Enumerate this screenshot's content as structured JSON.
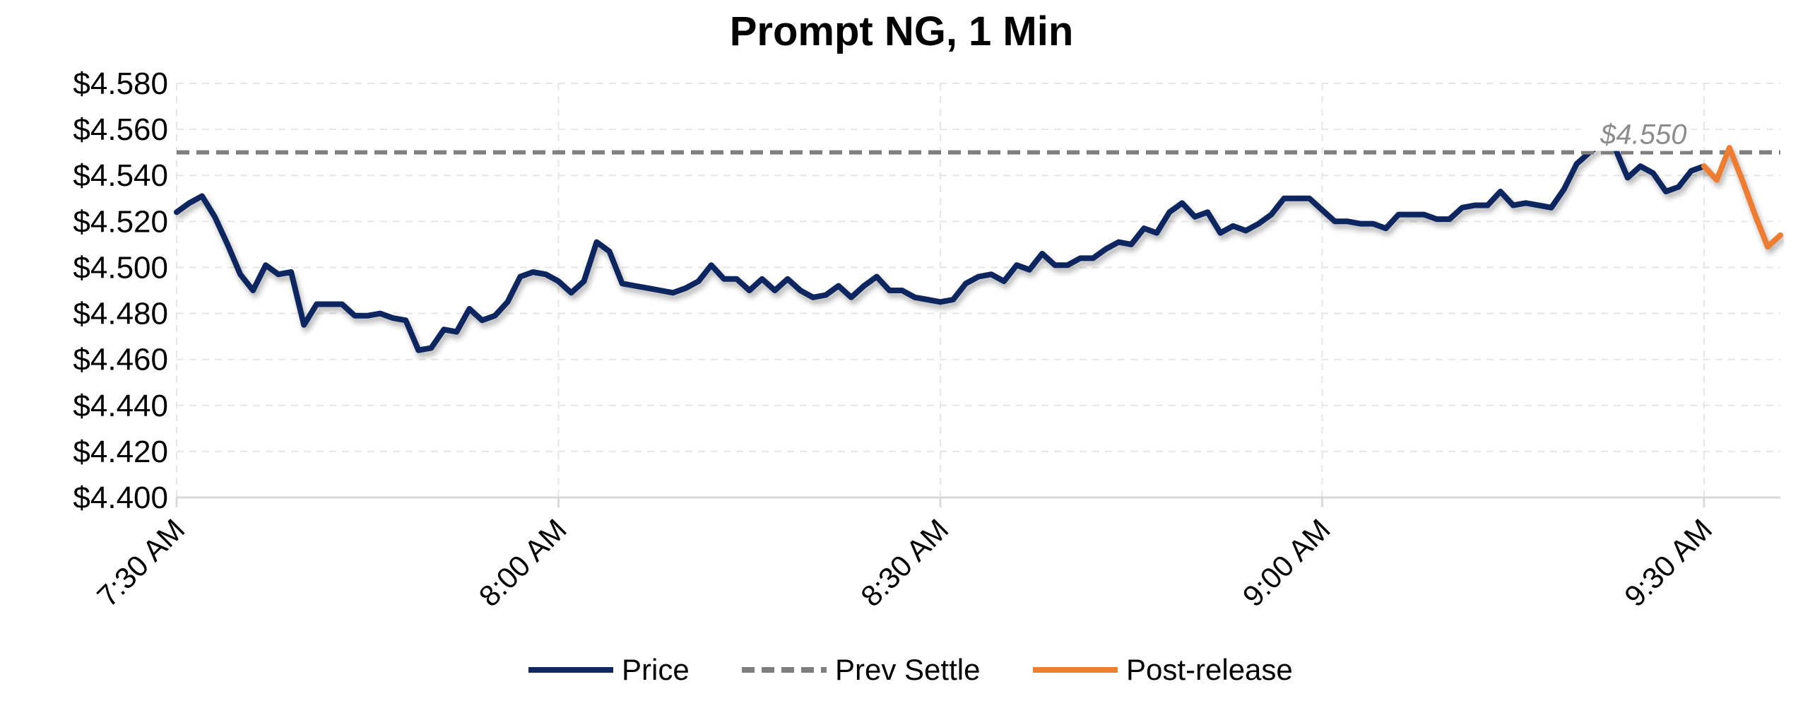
{
  "chart_data": {
    "type": "line",
    "title": "Prompt NG, 1 Min",
    "xlabel": "",
    "ylabel": "",
    "ylim": [
      4.4,
      4.58
    ],
    "y_ticks": [
      "$4.580",
      "$4.560",
      "$4.540",
      "$4.520",
      "$4.500",
      "$4.480",
      "$4.460",
      "$4.440",
      "$4.420",
      "$4.400"
    ],
    "y_tick_values": [
      4.58,
      4.56,
      4.54,
      4.52,
      4.5,
      4.48,
      4.46,
      4.44,
      4.42,
      4.4
    ],
    "x_ticks": [
      "7:30 AM",
      "8:00 AM",
      "8:30 AM",
      "9:00 AM",
      "9:30 AM"
    ],
    "x_tick_minutes": [
      450,
      480,
      510,
      540,
      570
    ],
    "xlim_minutes": [
      450,
      576
    ],
    "grid": true,
    "legend_position": "bottom",
    "series": [
      {
        "name": "Price",
        "color": "#10275e",
        "x_minutes": [
          450,
          451,
          452,
          453,
          454,
          455,
          456,
          457,
          458,
          459,
          460,
          461,
          462,
          463,
          464,
          465,
          466,
          467,
          468,
          469,
          470,
          471,
          472,
          473,
          474,
          475,
          476,
          477,
          478,
          479,
          480,
          481,
          482,
          483,
          484,
          485,
          486,
          487,
          488,
          489,
          490,
          491,
          492,
          493,
          494,
          495,
          496,
          497,
          498,
          499,
          500,
          501,
          502,
          503,
          504,
          505,
          506,
          507,
          508,
          509,
          510,
          511,
          512,
          513,
          514,
          515,
          516,
          517,
          518,
          519,
          520,
          521,
          522,
          523,
          524,
          525,
          526,
          527,
          528,
          529,
          530,
          531,
          532,
          533,
          534,
          535,
          536,
          537,
          538,
          539,
          540,
          541,
          542,
          543,
          544,
          545,
          546,
          547,
          548,
          549,
          550,
          551,
          552,
          553,
          554,
          555,
          556,
          557,
          558,
          559,
          560,
          561,
          562,
          563,
          564,
          565,
          566,
          567,
          568,
          569,
          570
        ],
        "values": [
          4.524,
          4.528,
          4.531,
          4.522,
          4.51,
          4.497,
          4.49,
          4.501,
          4.497,
          4.498,
          4.475,
          4.484,
          4.484,
          4.484,
          4.479,
          4.479,
          4.48,
          4.478,
          4.477,
          4.464,
          4.465,
          4.473,
          4.472,
          4.482,
          4.477,
          4.479,
          4.485,
          4.496,
          4.498,
          4.497,
          4.494,
          4.489,
          4.494,
          4.511,
          4.507,
          4.493,
          4.492,
          4.491,
          4.49,
          4.489,
          4.491,
          4.494,
          4.501,
          4.495,
          4.495,
          4.49,
          4.495,
          4.49,
          4.495,
          4.49,
          4.487,
          4.488,
          4.492,
          4.487,
          4.492,
          4.496,
          4.49,
          4.49,
          4.487,
          4.486,
          4.485,
          4.486,
          4.493,
          4.496,
          4.497,
          4.494,
          4.501,
          4.499,
          4.506,
          4.501,
          4.501,
          4.504,
          4.504,
          4.508,
          4.511,
          4.51,
          4.517,
          4.515,
          4.524,
          4.528,
          4.522,
          4.524,
          4.515,
          4.518,
          4.516,
          4.519,
          4.523,
          4.53,
          4.53,
          4.53,
          4.525,
          4.52,
          4.52,
          4.519,
          4.519,
          4.517,
          4.523,
          4.523,
          4.523,
          4.521,
          4.521,
          4.526,
          4.527,
          4.527,
          4.533,
          4.527,
          4.528,
          4.527,
          4.526,
          4.534,
          4.545,
          4.55,
          4.554,
          4.552,
          4.539,
          4.544,
          4.541,
          4.533,
          4.535,
          4.542,
          4.544
        ]
      },
      {
        "name": "Prev Settle",
        "color": "#7f7f7f",
        "constant": 4.55,
        "label": "$4.550"
      },
      {
        "name": "Post-release",
        "color": "#ed7d31",
        "x_minutes": [
          570,
          571,
          572,
          573,
          574,
          575,
          576
        ],
        "values": [
          4.544,
          4.538,
          4.552,
          4.538,
          4.523,
          4.509,
          4.514
        ]
      }
    ]
  }
}
